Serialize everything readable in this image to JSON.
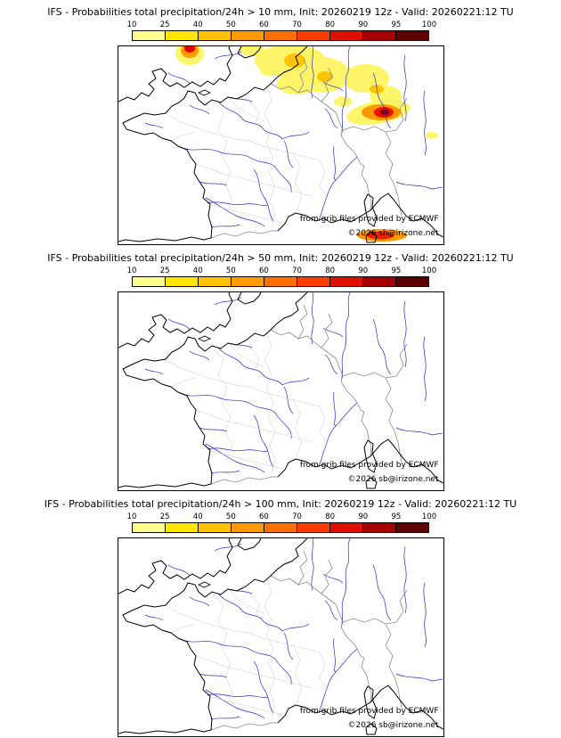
{
  "page": {
    "background": "#ffffff"
  },
  "panels": [
    {
      "title": "IFS - Probabilities total precipitation/24h > 10 mm, Init: 20260219 12z - Valid: 20260221:12 TU",
      "attribution": "from grib files provided by ECMWF",
      "copyright": "©2026 sb@irizone.net",
      "has_precip_overlay": true
    },
    {
      "title": "IFS - Probabilities total precipitation/24h > 50 mm, Init: 20260219 12z - Valid: 20260221:12 TU",
      "attribution": "from grib files provided by ECMWF",
      "copyright": "©2026 sb@irizone.net",
      "has_precip_overlay": false
    },
    {
      "title": "IFS - Probabilities total precipitation/24h > 100 mm, Init: 20260219 12z - Valid: 20260221:12 TU",
      "attribution": "from grib files provided by ECMWF",
      "copyright": "©2026 sb@irizone.net",
      "has_precip_overlay": false
    }
  ],
  "colorbar": {
    "ticks": [
      "10",
      "25",
      "40",
      "50",
      "60",
      "70",
      "80",
      "90",
      "95",
      "100"
    ],
    "colors": [
      "#fdff8f",
      "#ffe600",
      "#ffc100",
      "#ff9b00",
      "#ff7000",
      "#ff3c00",
      "#e01000",
      "#a80000",
      "#5c0000"
    ]
  },
  "map": {
    "coast_color": "#000000",
    "border_color": "#8a8a8a",
    "department_color": "#c9c9c9",
    "river_color": "#2a2ad0",
    "precip_max_colors": {
      "low": "#fdff8f",
      "mid": "#ff9800",
      "high": "#e01000",
      "extreme": "#8f0000"
    }
  }
}
